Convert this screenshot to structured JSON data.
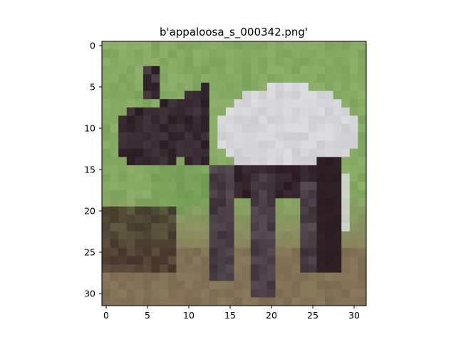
{
  "figure": {
    "title": "b'appaloosa_s_000342.png'",
    "image_subject": "pixelated 32x32 photo of an appaloosa horse standing on grass",
    "x_ticks": [
      "0",
      "5",
      "10",
      "15",
      "20",
      "25",
      "30"
    ],
    "y_ticks": [
      "0",
      "5",
      "10",
      "15",
      "20",
      "25",
      "30"
    ],
    "image_size": [
      32,
      32
    ],
    "colors": {
      "grass": "#8fb06a",
      "grass_dark": "#6f9a52",
      "horse_white": "#dcdde0",
      "horse_dark": "#2a1c22",
      "dirt": "#8a7a5c"
    }
  }
}
